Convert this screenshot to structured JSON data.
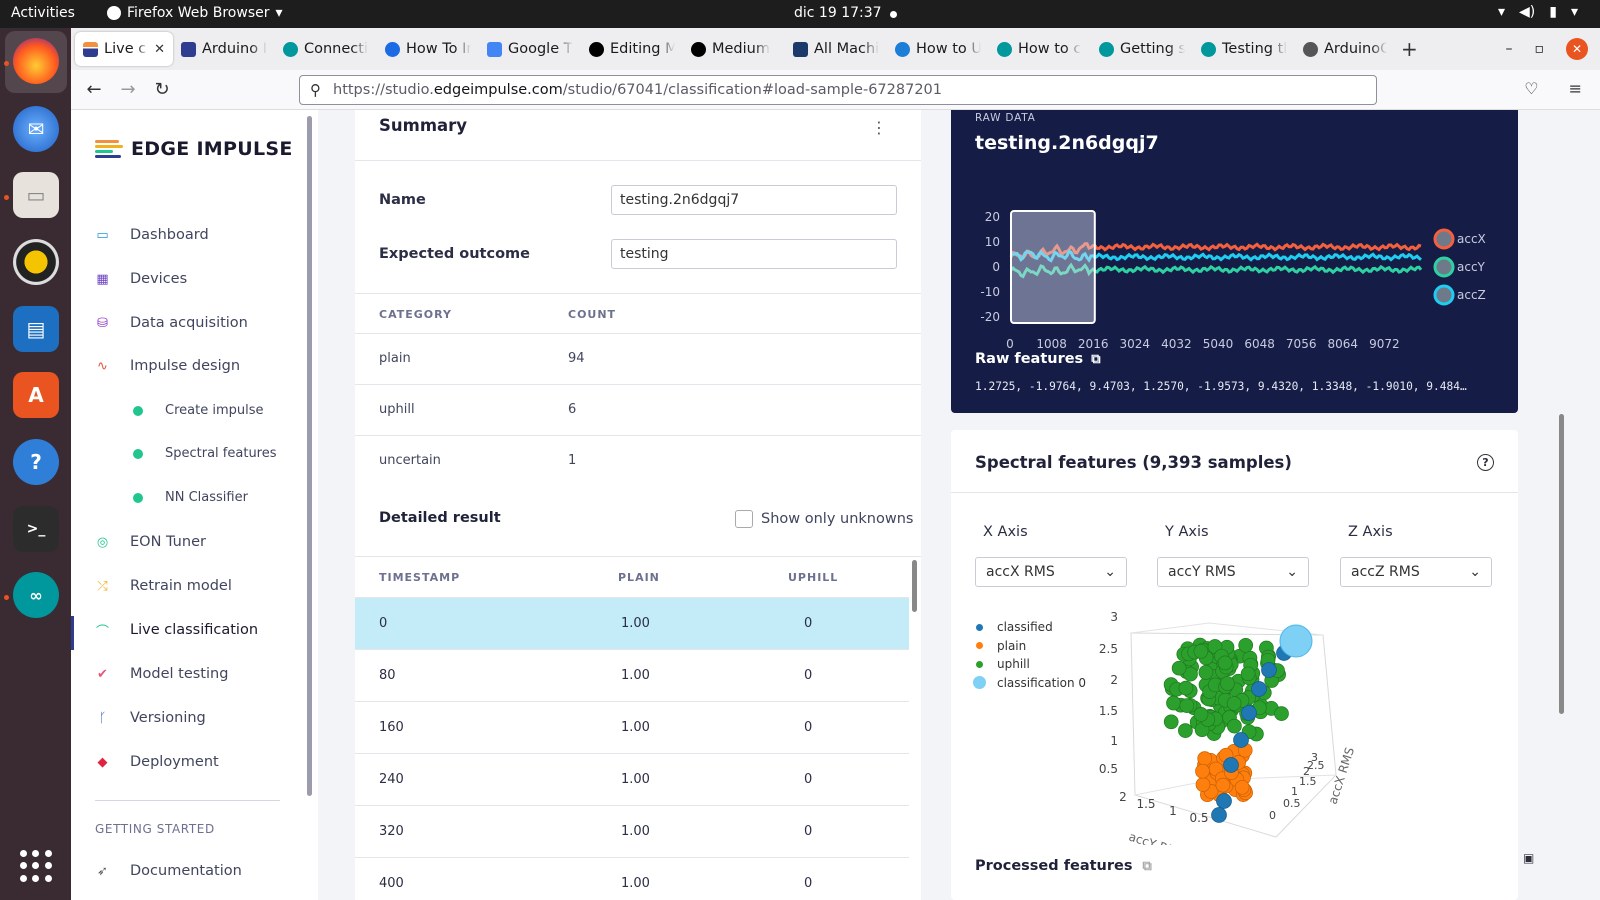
{
  "os": {
    "activities": "Activities",
    "app_name": "Firefox Web Browser",
    "clock": "dic 19  17:37"
  },
  "browser": {
    "tabs": [
      {
        "title": "Live cla",
        "color": "#f3903f",
        "active": true
      },
      {
        "title": "Arduino I",
        "color": "#2e3d8f"
      },
      {
        "title": "Connecti",
        "color": "#00979d"
      },
      {
        "title": "How To In",
        "color": "#1d6ae5"
      },
      {
        "title": "Google T",
        "color": "#4285f4"
      },
      {
        "title": "Editing M",
        "color": "#000000"
      },
      {
        "title": "Medium",
        "color": "#000000"
      },
      {
        "title": "All Machi",
        "color": "#1b3a6b"
      },
      {
        "title": "How to U",
        "color": "#1c7ed6"
      },
      {
        "title": "How to c",
        "color": "#00979d"
      },
      {
        "title": "Getting s",
        "color": "#00979d"
      },
      {
        "title": "Testing tl",
        "color": "#00979d"
      },
      {
        "title": "ArduinoC",
        "color": "#555555"
      }
    ],
    "url_prefix": "https://studio.",
    "url_host": "edgeimpulse.com",
    "url_path": "/studio/67041/classification#load-sample-67287201"
  },
  "sidebar": {
    "brand": "EDGE IMPULSE",
    "items": [
      {
        "label": "Dashboard",
        "icon": "monitor-icon",
        "color": "#1e9bd7"
      },
      {
        "label": "Devices",
        "icon": "chip-icon",
        "color": "#6f42c1"
      },
      {
        "label": "Data acquisition",
        "icon": "database-icon",
        "color": "#8e2ec9"
      },
      {
        "label": "Impulse design",
        "icon": "pulse-icon",
        "color": "#e8543f"
      },
      {
        "label": "EON Tuner",
        "icon": "gauge-icon",
        "color": "#21c68f"
      },
      {
        "label": "Retrain model",
        "icon": "shuffle-icon",
        "color": "#f2b01e"
      },
      {
        "label": "Live classification",
        "icon": "signal-icon",
        "color": "#21c68f"
      },
      {
        "label": "Model testing",
        "icon": "clipboard-check-icon",
        "color": "#e8557a"
      },
      {
        "label": "Versioning",
        "icon": "branch-icon",
        "color": "#3d5bd9"
      },
      {
        "label": "Deployment",
        "icon": "cube-icon",
        "color": "#e0243f"
      },
      {
        "label": "Documentation",
        "icon": "rocket-icon",
        "color": "#555555"
      }
    ],
    "sub_items": [
      "Create impulse",
      "Spectral features",
      "NN Classifier"
    ],
    "section": "GETTING STARTED"
  },
  "summary": {
    "title": "Summary",
    "name_label": "Name",
    "name_value": "testing.2n6dgqj7",
    "outcome_label": "Expected outcome",
    "outcome_value": "testing",
    "category_header": "CATEGORY",
    "count_header": "COUNT",
    "categories": [
      {
        "name": "plain",
        "count": "94"
      },
      {
        "name": "uphill",
        "count": "6"
      },
      {
        "name": "uncertain",
        "count": "1"
      }
    ],
    "detailed_title": "Detailed result",
    "show_unknowns": "Show only unknowns",
    "result_headers": [
      "TIMESTAMP",
      "PLAIN",
      "UPHILL"
    ],
    "results": [
      {
        "ts": "0",
        "plain": "1.00",
        "uphill": "0"
      },
      {
        "ts": "80",
        "plain": "1.00",
        "uphill": "0"
      },
      {
        "ts": "160",
        "plain": "1.00",
        "uphill": "0"
      },
      {
        "ts": "240",
        "plain": "1.00",
        "uphill": "0"
      },
      {
        "ts": "320",
        "plain": "1.00",
        "uphill": "0"
      },
      {
        "ts": "400",
        "plain": "1.00",
        "uphill": "0"
      }
    ]
  },
  "raw": {
    "label": "RAW DATA",
    "title": "testing.2n6dgqj7",
    "features_label": "Raw features",
    "features_values": "1.2725, -1.9764, 9.4703, 1.2570, -1.9573, 9.4320, 1.3348, -1.9010, 9.484…",
    "chart_data": {
      "type": "line",
      "y_ticks": [
        "20",
        "10",
        "0",
        "-10",
        "-20"
      ],
      "x_ticks": [
        "0",
        "1008",
        "2016",
        "3024",
        "4032",
        "5040",
        "6048",
        "7056",
        "8064",
        "9072"
      ],
      "ylim": [
        -20,
        20
      ],
      "series": [
        {
          "name": "accX",
          "color": "#f4603e",
          "level": 8
        },
        {
          "name": "accY",
          "color": "#2ed1a2",
          "level": -1
        },
        {
          "name": "accZ",
          "color": "#1ecdf0",
          "level": 4
        }
      ],
      "window": [
        0,
        2016
      ]
    }
  },
  "spectral": {
    "title": "Spectral features (9,393 samples)",
    "x_axis_label": "X Axis",
    "y_axis_label": "Y Axis",
    "z_axis_label": "Z Axis",
    "x_axis_value": "accX RMS",
    "y_axis_value": "accY RMS",
    "z_axis_value": "accZ RMS",
    "legend": [
      {
        "label": "classified",
        "color": "#1f77b4"
      },
      {
        "label": "plain",
        "color": "#ff7f0e"
      },
      {
        "label": "uphill",
        "color": "#2ca02c"
      },
      {
        "label": "classification 0",
        "color": "#7fd0f5"
      }
    ],
    "z_ticks": [
      "3",
      "2.5",
      "2",
      "1.5",
      "1",
      "0.5"
    ],
    "y_ticks": [
      "2",
      "1.5",
      "1",
      "0.5"
    ],
    "x_ticks": [
      "0",
      "0.5",
      "1",
      "1.5",
      "2",
      "2.5",
      "3"
    ],
    "zlabel": "accZ RMS",
    "ylabel": "accY RMS",
    "xlabel": "accX RMS",
    "processed_label": "Processed features"
  }
}
